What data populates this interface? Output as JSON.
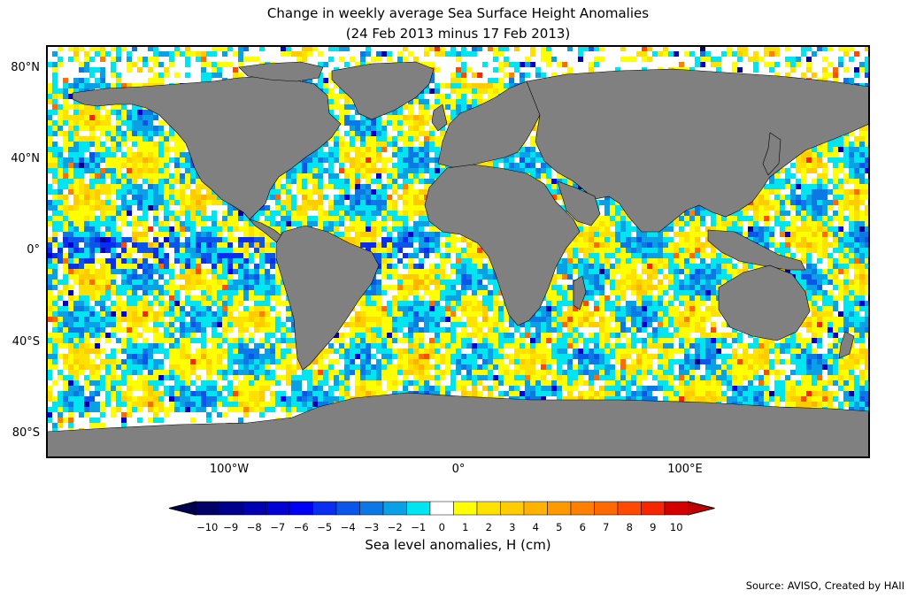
{
  "title": {
    "line1": "Change in weekly average Sea Surface Height Anomalies",
    "line2": "(24 Feb 2013 minus 17 Feb 2013)"
  },
  "axes": {
    "lat_ticks": [
      "80°N",
      "40°N",
      "0°",
      "40°S",
      "80°S"
    ],
    "lat_values": [
      80,
      40,
      0,
      -40,
      -80
    ],
    "lon_ticks": [
      "100°W",
      "0°",
      "100°E"
    ],
    "lon_values": [
      -100,
      0,
      100
    ],
    "lon_range": [
      -180,
      180
    ],
    "lat_range": [
      -90,
      90
    ]
  },
  "colorbar": {
    "label": "Sea level anomalies, H (cm)",
    "ticks": [
      "−10",
      "−9",
      "−8",
      "−7",
      "−6",
      "−5",
      "−4",
      "−3",
      "−2",
      "−1",
      "0",
      "1",
      "2",
      "3",
      "4",
      "5",
      "6",
      "7",
      "8",
      "9",
      "10"
    ],
    "colors": [
      "#000066",
      "#00008b",
      "#0000b0",
      "#0000d4",
      "#0000f5",
      "#0a2ef0",
      "#0b55ea",
      "#0b78e6",
      "#0aa0e6",
      "#00e5ef",
      "#ffffff",
      "#ffff00",
      "#ffe100",
      "#ffcc00",
      "#ffb300",
      "#ff9900",
      "#ff8000",
      "#ff6a00",
      "#ff4a00",
      "#f52600",
      "#d40000"
    ],
    "extend_low": "#000050",
    "extend_high": "#c00000"
  },
  "colors": {
    "land": "#808080",
    "ocean_no_data": "#ffffff"
  },
  "source": "Source: AVISO, Created by HAII"
}
